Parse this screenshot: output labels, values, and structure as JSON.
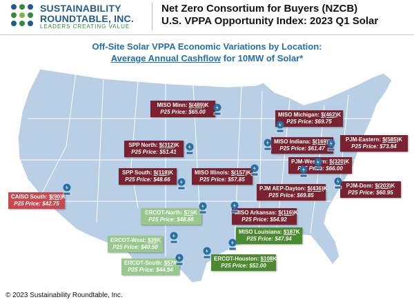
{
  "logo": {
    "line1": "SUSTAINABILITY",
    "line2": "ROUNDTABLE, INC.",
    "tagline": "LEADERS CREATING VALUE"
  },
  "header": {
    "line1": "Net Zero Consortium for Buyers (NZCB)",
    "line2": "U.S. VPPA Opportunity Index: 2023 Q1 Solar"
  },
  "subtitle": {
    "line1": "Off-Site Solar VPPA Economic Variations by Location:",
    "line2_u": "Average Annual Cashflow",
    "line2_rest": " for 10MW of Solar*"
  },
  "colors": {
    "loss": "#7a2230",
    "caiso": "#c9474f",
    "gain_light": "#96c98b",
    "gain_dark": "#4b8a2e",
    "land": "#b8cfe6",
    "border": "#ffffff"
  },
  "locations": [
    {
      "name": "MISO Minn: ",
      "value": "$(489)",
      "suffix": "K",
      "price": "P25 Price: $65.00",
      "style": "maroon"
    },
    {
      "name": "MISO Michigan: ",
      "value": "$(462)",
      "suffix": "K",
      "price": "P25 Price: $69.75",
      "style": "maroon"
    },
    {
      "name": "SPP North: ",
      "value": "$(312)",
      "suffix": "K",
      "price": "P25 Price: $51.41",
      "style": "maroon"
    },
    {
      "name": "MISO Indiana: ",
      "value": "$(169)",
      "suffix": "K",
      "price": "P25 Price: $61.47",
      "style": "maroon"
    },
    {
      "name": "PJM-Eastern: ",
      "value": "$(585)",
      "suffix": "K",
      "price": "P25 Price: $73.84",
      "style": "maroon"
    },
    {
      "name": "PJM-Western: ",
      "value": "$(320)",
      "suffix": "K",
      "price": "P25 Price: $66.00",
      "style": "maroon"
    },
    {
      "name": "SPP South: ",
      "value": "$(118)",
      "suffix": "K",
      "price": "P25 Price: $48.66",
      "style": "maroon"
    },
    {
      "name": "MISO Illinois: ",
      "value": "$(157)",
      "suffix": "K",
      "price": "P25 Price: $57.85",
      "style": "maroon"
    },
    {
      "name": "PJM-Dom: ",
      "value": "$(203)",
      "suffix": "K",
      "price": "P25 Price: $60.95",
      "style": "maroon"
    },
    {
      "name": "PJM AEP-Dayton: ",
      "value": "$(436)",
      "suffix": "K",
      "price": "P25 Price: $69.85",
      "style": "maroon"
    },
    {
      "name": "CAISO South: ",
      "value": "$(90)",
      "suffix": "K",
      "price": "P25 Price: $42.75",
      "style": "red"
    },
    {
      "name": "ERCOT-North: ",
      "value": "$75",
      "suffix": "K",
      "price": "P25 Price: $48.88",
      "style": "lgreen"
    },
    {
      "name": "MISO Arkansas: ",
      "value": "$(116)",
      "suffix": "K",
      "price": "P25 Price: $54.92",
      "style": "maroon"
    },
    {
      "name": "MISO Louisiana: ",
      "value": "$187",
      "suffix": "K",
      "price": "P25 Price: $47.94",
      "style": "dgreen"
    },
    {
      "name": "ERCOT-West: ",
      "value": "$39",
      "suffix": "K",
      "price": "P25 Price: $40.50",
      "style": "lgreen"
    },
    {
      "name": "ERCOT-Houston: ",
      "value": "$108",
      "suffix": "K",
      "price": "P25 Price: $52.00",
      "style": "dgreen"
    },
    {
      "name": "ERCOT-South: ",
      "value": "$57",
      "suffix": "K",
      "price": "P25 Price: $44.94",
      "style": "lgreen"
    }
  ],
  "footer": "© 2023 Sustainability Roundtable, Inc."
}
